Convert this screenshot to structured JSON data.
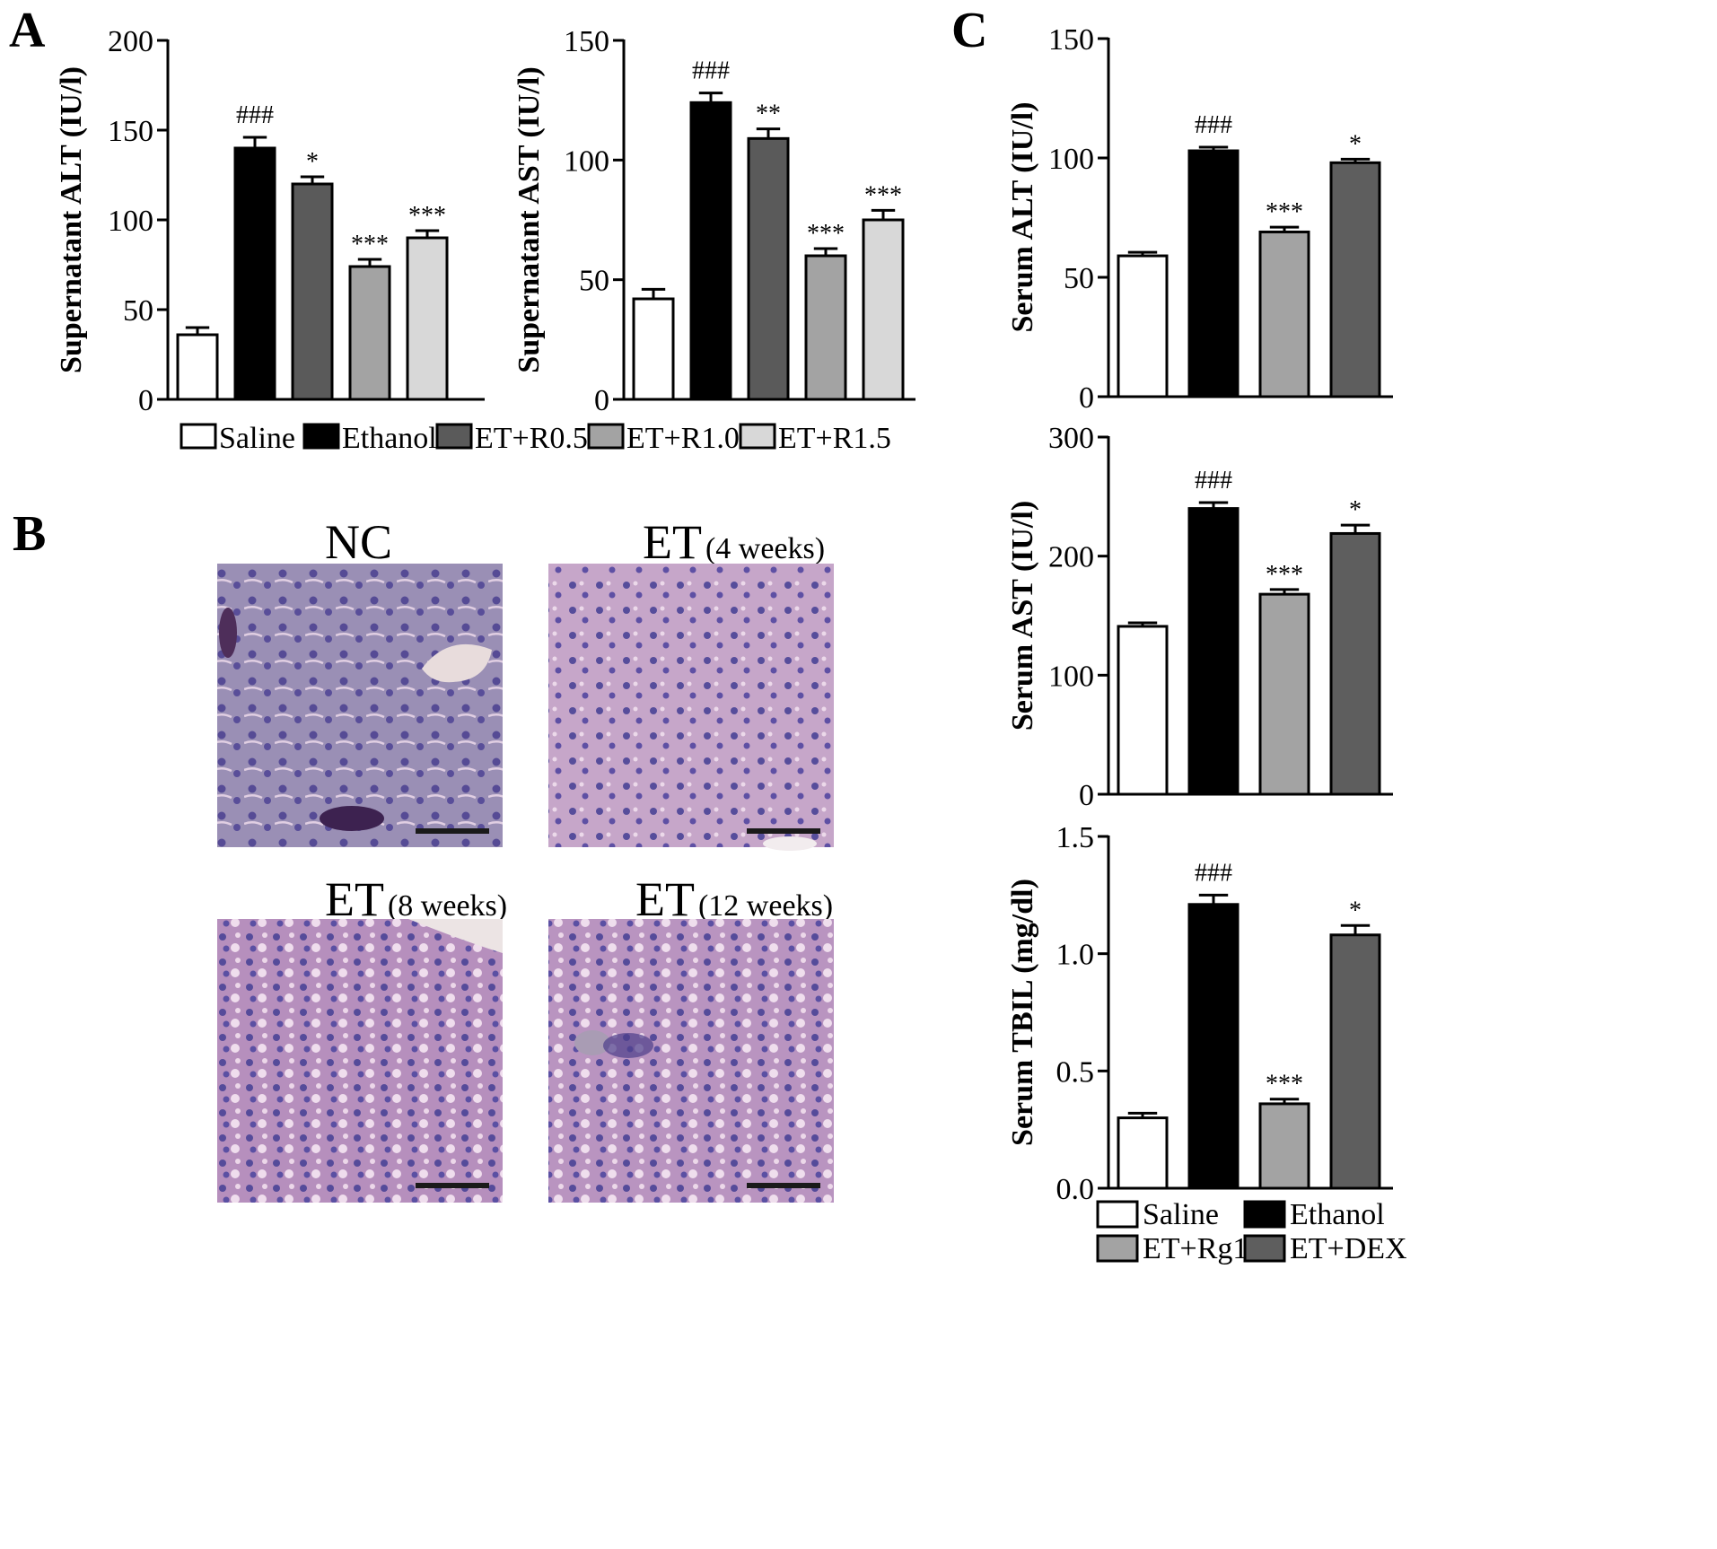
{
  "panels": {
    "A": "A",
    "B": "B",
    "C": "C"
  },
  "colors": {
    "saline": "#ffffff",
    "ethanol": "#000000",
    "r05": "#5a5a5a",
    "r10": "#a3a3a3",
    "r15": "#d8d8d8",
    "rg1": "#a3a3a3",
    "dex": "#5e5e5e"
  },
  "legend_a": [
    "Saline",
    "Ethanol",
    "ET+R0.5",
    "ET+R1.0",
    "ET+R1.5"
  ],
  "legend_c": [
    "Saline",
    "Ethanol",
    "ET+Rg1",
    "ET+DEX"
  ],
  "micrographs": [
    {
      "main": "NC",
      "sub": ""
    },
    {
      "main": "ET",
      "sub": "(4 weeks)"
    },
    {
      "main": "ET",
      "sub": "(8 weeks)"
    },
    {
      "main": "ET",
      "sub": "(12 weeks)"
    }
  ],
  "chart_data": [
    {
      "type": "bar",
      "panel": "A",
      "categories": [
        "Saline",
        "Ethanol",
        "ET+R0.5",
        "ET+R1.0",
        "ET+R1.5"
      ],
      "values": [
        36,
        140,
        120,
        74,
        90
      ],
      "errors": [
        4,
        6,
        4,
        4,
        4
      ],
      "significance": [
        "",
        "###",
        "*",
        "***",
        "***"
      ],
      "ylabel": "Supernatant ALT (IU/l)",
      "ylim": [
        0,
        200
      ],
      "yticks": [
        "0",
        "50",
        "100",
        "150",
        "200"
      ],
      "colors": [
        "#ffffff",
        "#000000",
        "#5a5a5a",
        "#a3a3a3",
        "#d8d8d8"
      ]
    },
    {
      "type": "bar",
      "panel": "A",
      "categories": [
        "Saline",
        "Ethanol",
        "ET+R0.5",
        "ET+R1.0",
        "ET+R1.5"
      ],
      "values": [
        42,
        124,
        109,
        60,
        75
      ],
      "errors": [
        4,
        4,
        4,
        3,
        4
      ],
      "significance": [
        "",
        "###",
        "**",
        "***",
        "***"
      ],
      "ylabel": "Supernatant AST (IU/l)",
      "ylim": [
        0,
        150
      ],
      "yticks": [
        "0",
        "50",
        "100",
        "150"
      ],
      "colors": [
        "#ffffff",
        "#000000",
        "#5a5a5a",
        "#a3a3a3",
        "#d8d8d8"
      ]
    },
    {
      "type": "bar",
      "panel": "C",
      "categories": [
        "Saline",
        "Ethanol",
        "ET+Rg1",
        "ET+DEX"
      ],
      "values": [
        59,
        103,
        69,
        98
      ],
      "errors": [
        1.5,
        1.5,
        2,
        1.5
      ],
      "significance": [
        "",
        "###",
        "***",
        "*"
      ],
      "ylabel": "Serum ALT (IU/l)",
      "ylim": [
        0,
        150
      ],
      "yticks": [
        "0",
        "50",
        "100",
        "150"
      ],
      "colors": [
        "#ffffff",
        "#000000",
        "#a3a3a3",
        "#5e5e5e"
      ]
    },
    {
      "type": "bar",
      "panel": "C",
      "categories": [
        "Saline",
        "Ethanol",
        "ET+Rg1",
        "ET+DEX"
      ],
      "values": [
        141,
        240,
        168,
        219
      ],
      "errors": [
        3,
        5,
        4,
        7
      ],
      "significance": [
        "",
        "###",
        "***",
        "*"
      ],
      "ylabel": "Serum AST (IU/l)",
      "ylim": [
        0,
        300
      ],
      "yticks": [
        "0",
        "100",
        "200",
        "300"
      ],
      "colors": [
        "#ffffff",
        "#000000",
        "#a3a3a3",
        "#5e5e5e"
      ]
    },
    {
      "type": "bar",
      "panel": "C",
      "categories": [
        "Saline",
        "Ethanol",
        "ET+Rg1",
        "ET+DEX"
      ],
      "values": [
        0.3,
        1.21,
        0.36,
        1.08
      ],
      "errors": [
        0.02,
        0.04,
        0.02,
        0.04
      ],
      "significance": [
        "",
        "###",
        "***",
        "*"
      ],
      "ylabel": "Serum TBIL (mg/dl)",
      "ylim": [
        0,
        1.5
      ],
      "yticks": [
        "0.0",
        "0.5",
        "1.0",
        "1.5"
      ],
      "colors": [
        "#ffffff",
        "#000000",
        "#a3a3a3",
        "#5e5e5e"
      ]
    }
  ]
}
